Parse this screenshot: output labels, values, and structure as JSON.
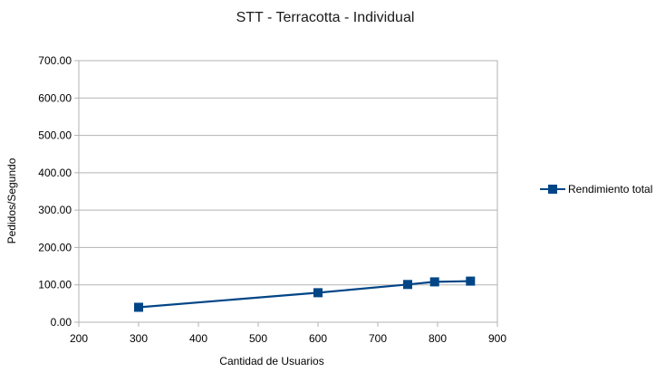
{
  "chart_data": {
    "type": "line",
    "title": "STT - Terracotta - Individual",
    "xlabel": "Cantidad de Usuarios",
    "ylabel": "Pedidos/Segundo",
    "xlim": [
      200,
      900
    ],
    "ylim": [
      0,
      700
    ],
    "x_ticks": [
      "200",
      "300",
      "400",
      "500",
      "600",
      "700",
      "800",
      "900"
    ],
    "y_ticks": [
      "0.00",
      "100.00",
      "200.00",
      "300.00",
      "400.00",
      "500.00",
      "600.00",
      "700.00"
    ],
    "grid": "horizontal",
    "legend_position": "right",
    "series": [
      {
        "name": "Rendimiento total",
        "color": "#004586",
        "marker": "square",
        "x": [
          300,
          600,
          750,
          795,
          855
        ],
        "y": [
          40,
          79,
          101,
          108,
          110
        ]
      }
    ]
  }
}
